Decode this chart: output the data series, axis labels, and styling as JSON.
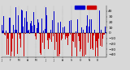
{
  "background_color": "#d8d8d8",
  "plot_bg_color": "#d8d8d8",
  "ylim": [
    -45,
    50
  ],
  "yticks": [
    -40,
    -30,
    -20,
    -10,
    0,
    10,
    20,
    30,
    40
  ],
  "ylabel_fontsize": 3.2,
  "num_bars": 365,
  "bar_width": 1.0,
  "above_color": "#0000cc",
  "below_color": "#cc0000",
  "vgrid_color": "#888888",
  "legend_blue": "#0000cc",
  "legend_red": "#cc0000",
  "month_positions": [
    0,
    31,
    59,
    90,
    120,
    151,
    181,
    212,
    243,
    273,
    304,
    334
  ],
  "month_labels": [
    "J",
    "F",
    "M",
    "A",
    "M",
    "J",
    "J",
    "A",
    "S",
    "O",
    "N",
    "D"
  ]
}
